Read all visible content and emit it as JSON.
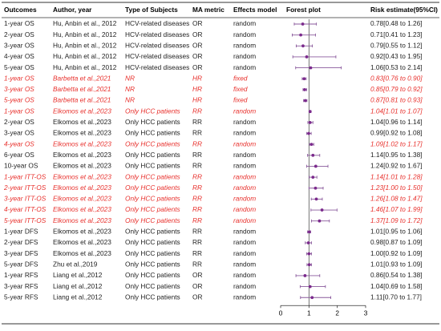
{
  "chart_data": {
    "type": "forest",
    "columns": [
      "Outcomes",
      "Author, year",
      "Type of Subjects",
      "MA metric",
      "Effects model",
      "Forest plot",
      "Risk estimate(95%CI)"
    ],
    "outcomes": [
      "1-year OS",
      "2-year OS",
      "3-year OS",
      "4-year OS",
      "5-year OS",
      "1-year OS",
      "3-year OS",
      "5-year OS",
      "1-year OS",
      "2-year OS",
      "3-year OS",
      "4-year OS",
      "6-year OS",
      "10-year OS",
      "1-year ITT-OS",
      "2-year ITT-OS",
      "3-year ITT-OS",
      "4-year ITT-OS",
      "5-year ITT-OS",
      "1-year DFS",
      "2-year DFS",
      "3-year DFS",
      "5-year DFS",
      "1-year RFS",
      "3-year RFS",
      "5-year RFS"
    ],
    "authors": [
      "Hu, Anbin et al., 2012",
      "Hu, Anbin et al., 2012",
      "Hu, Anbin et al., 2012",
      "Hu, Anbin et al., 2012",
      "Hu, Anbin et al., 2012",
      "Barbetta et al.,2021",
      "Barbetta et al.,2021",
      "Barbetta et al.,2021",
      "Elkomos et al.,2023",
      "Elkomos et al.,2023",
      "Elkomos et al.,2023",
      "Elkomos et al.,2023",
      "Elkomos et al.,2023",
      "Elkomos et al.,2023",
      "Elkomos et al.,2023",
      "Elkomos et al.,2023",
      "Elkomos et al.,2023",
      "Elkomos et al.,2023",
      "Elkomos et al.,2023",
      "Elkomos et al.,2023",
      "Elkomos et al.,2023",
      "Elkomos et al.,2023",
      "Zhu et al.,2019",
      "Liang et al.,2012",
      "Liang et al.,2012",
      "Liang et al.,2012"
    ],
    "subjects": [
      "HCV-related diseases",
      "HCV-related diseases",
      "HCV-related diseases",
      "HCV-related diseases",
      "HCV-related diseases",
      "NR",
      "NR",
      "NR",
      "Only HCC patients",
      "Only HCC patients",
      "Only HCC patients",
      "Only HCC patients",
      "Only HCC patients",
      "Only HCC patients",
      "Only HCC patients",
      "Only HCC patients",
      "Only HCC patients",
      "Only HCC patients",
      "Only HCC patients",
      "Only HCC patients",
      "Only HCC patients",
      "Only HCC patients",
      "Only HCC patients",
      "Only HCC patients",
      "Only HCC patients",
      "Only HCC patients"
    ],
    "metrics": [
      "OR",
      "OR",
      "OR",
      "OR",
      "OR",
      "HR",
      "HR",
      "HR",
      "RR",
      "RR",
      "RR",
      "RR",
      "RR",
      "RR",
      "RR",
      "RR",
      "RR",
      "RR",
      "RR",
      "RR",
      "RR",
      "RR",
      "RR",
      "OR",
      "OR",
      "OR"
    ],
    "models": [
      "random",
      "random",
      "random",
      "random",
      "random",
      "fixed",
      "fixed",
      "fixed",
      "random",
      "random",
      "random",
      "random",
      "random",
      "random",
      "random",
      "random",
      "random",
      "random",
      "random",
      "random",
      "random",
      "random",
      "random",
      "random",
      "random",
      "random"
    ],
    "values": [
      0.78,
      0.71,
      0.79,
      0.92,
      1.06,
      0.83,
      0.85,
      0.87,
      1.04,
      1.04,
      0.99,
      1.09,
      1.14,
      1.24,
      1.14,
      1.23,
      1.26,
      1.46,
      1.37,
      1.01,
      0.98,
      1.0,
      1.01,
      0.86,
      1.04,
      1.11
    ],
    "lower": [
      0.48,
      0.41,
      0.55,
      0.43,
      0.53,
      0.76,
      0.79,
      0.81,
      1.01,
      0.96,
      0.92,
      1.02,
      0.95,
      0.92,
      1.01,
      1.0,
      1.08,
      1.07,
      1.09,
      0.95,
      0.87,
      0.92,
      0.93,
      0.54,
      0.69,
      0.7
    ],
    "upper": [
      1.26,
      1.23,
      1.12,
      1.95,
      2.14,
      0.9,
      0.92,
      0.93,
      1.07,
      1.14,
      1.08,
      1.17,
      1.38,
      1.67,
      1.28,
      1.5,
      1.47,
      1.99,
      1.72,
      1.06,
      1.09,
      1.09,
      1.09,
      1.38,
      1.58,
      1.77
    ],
    "value_labels": [
      "0.78[0.48 to 1.26]",
      "0.71[0.41 to 1.23]",
      "0.79[0.55 to 1.12]",
      "0.92[0.43 to 1.95]",
      "1.06[0.53 to 2.14]",
      "0.83[0.76 to 0.90]",
      "0.85[0.79 to 0.92]",
      "0.87[0.81 to 0.93]",
      "1.04[1.01 to 1.07]",
      "1.04[0.96 to 1.14]",
      "0.99[0.92 to 1.08]",
      "1.09[1.02 to 1.17]",
      "1.14[0.95 to 1.38]",
      "1.24[0.92 to 1.67]",
      "1.14[1.01 to 1.28]",
      "1.23[1.00 to 1.50]",
      "1.26[1.08 to 1.47]",
      "1.46[1.07 to 1.99]",
      "1.37[1.09 to 1.72]",
      "1.01[0.95 to 1.06]",
      "0.98[0.87 to 1.09]",
      "1.00[0.92 to 1.09]",
      "1.01[0.93 to 1.09]",
      "0.86[0.54 to 1.38]",
      "1.04[0.69 to 1.58]",
      "1.11[0.70 to 1.77]"
    ],
    "row_colors": [
      "#222",
      "#222",
      "#222",
      "#222",
      "#222",
      "#e8302c",
      "#e8302c",
      "#e8302c",
      "#e8302c",
      "#222",
      "#222",
      "#e8302c",
      "#222",
      "#222",
      "#e8302c",
      "#e8302c",
      "#e8302c",
      "#e8302c",
      "#e8302c",
      "#222",
      "#222",
      "#222",
      "#222",
      "#222",
      "#222",
      "#222"
    ],
    "point_color": "#7b2a8c",
    "ci_color": "#8a5a9c",
    "xlim": [
      0,
      3
    ],
    "xticks": [
      0,
      1,
      2,
      3
    ],
    "reference_line": 1
  }
}
